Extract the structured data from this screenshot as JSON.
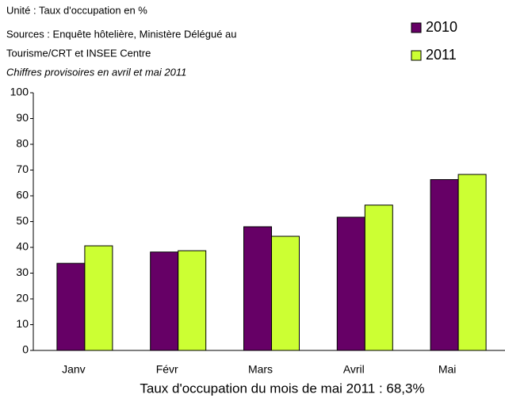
{
  "chart_data": {
    "type": "bar",
    "subtitle": [
      "Unité : Taux d'occupation en %",
      "Sources : Enquête hôtelière, Ministère Délégué au",
      "Tourisme/CRT et INSEE Centre"
    ],
    "annotation": "Chiffres provisoires en avril et mai 2011",
    "categories": [
      "Janv",
      "Févr",
      "Mars",
      "Avril",
      "Mai"
    ],
    "series": [
      {
        "name": "2010",
        "color": "#660066",
        "values": [
          33.8,
          38.2,
          48,
          51.7,
          66.3
        ]
      },
      {
        "name": "2011",
        "color": "#ccff33",
        "values": [
          40.6,
          38.7,
          44.3,
          56.4,
          68.3
        ]
      }
    ],
    "xlabel": "Taux d'occupation du mois de mai 2011 : 68,3%",
    "ylim": [
      0,
      100
    ],
    "yticks": [
      0,
      10,
      20,
      30,
      40,
      50,
      60,
      70,
      80,
      90,
      100
    ],
    "grid": false,
    "legend": "top-right"
  }
}
